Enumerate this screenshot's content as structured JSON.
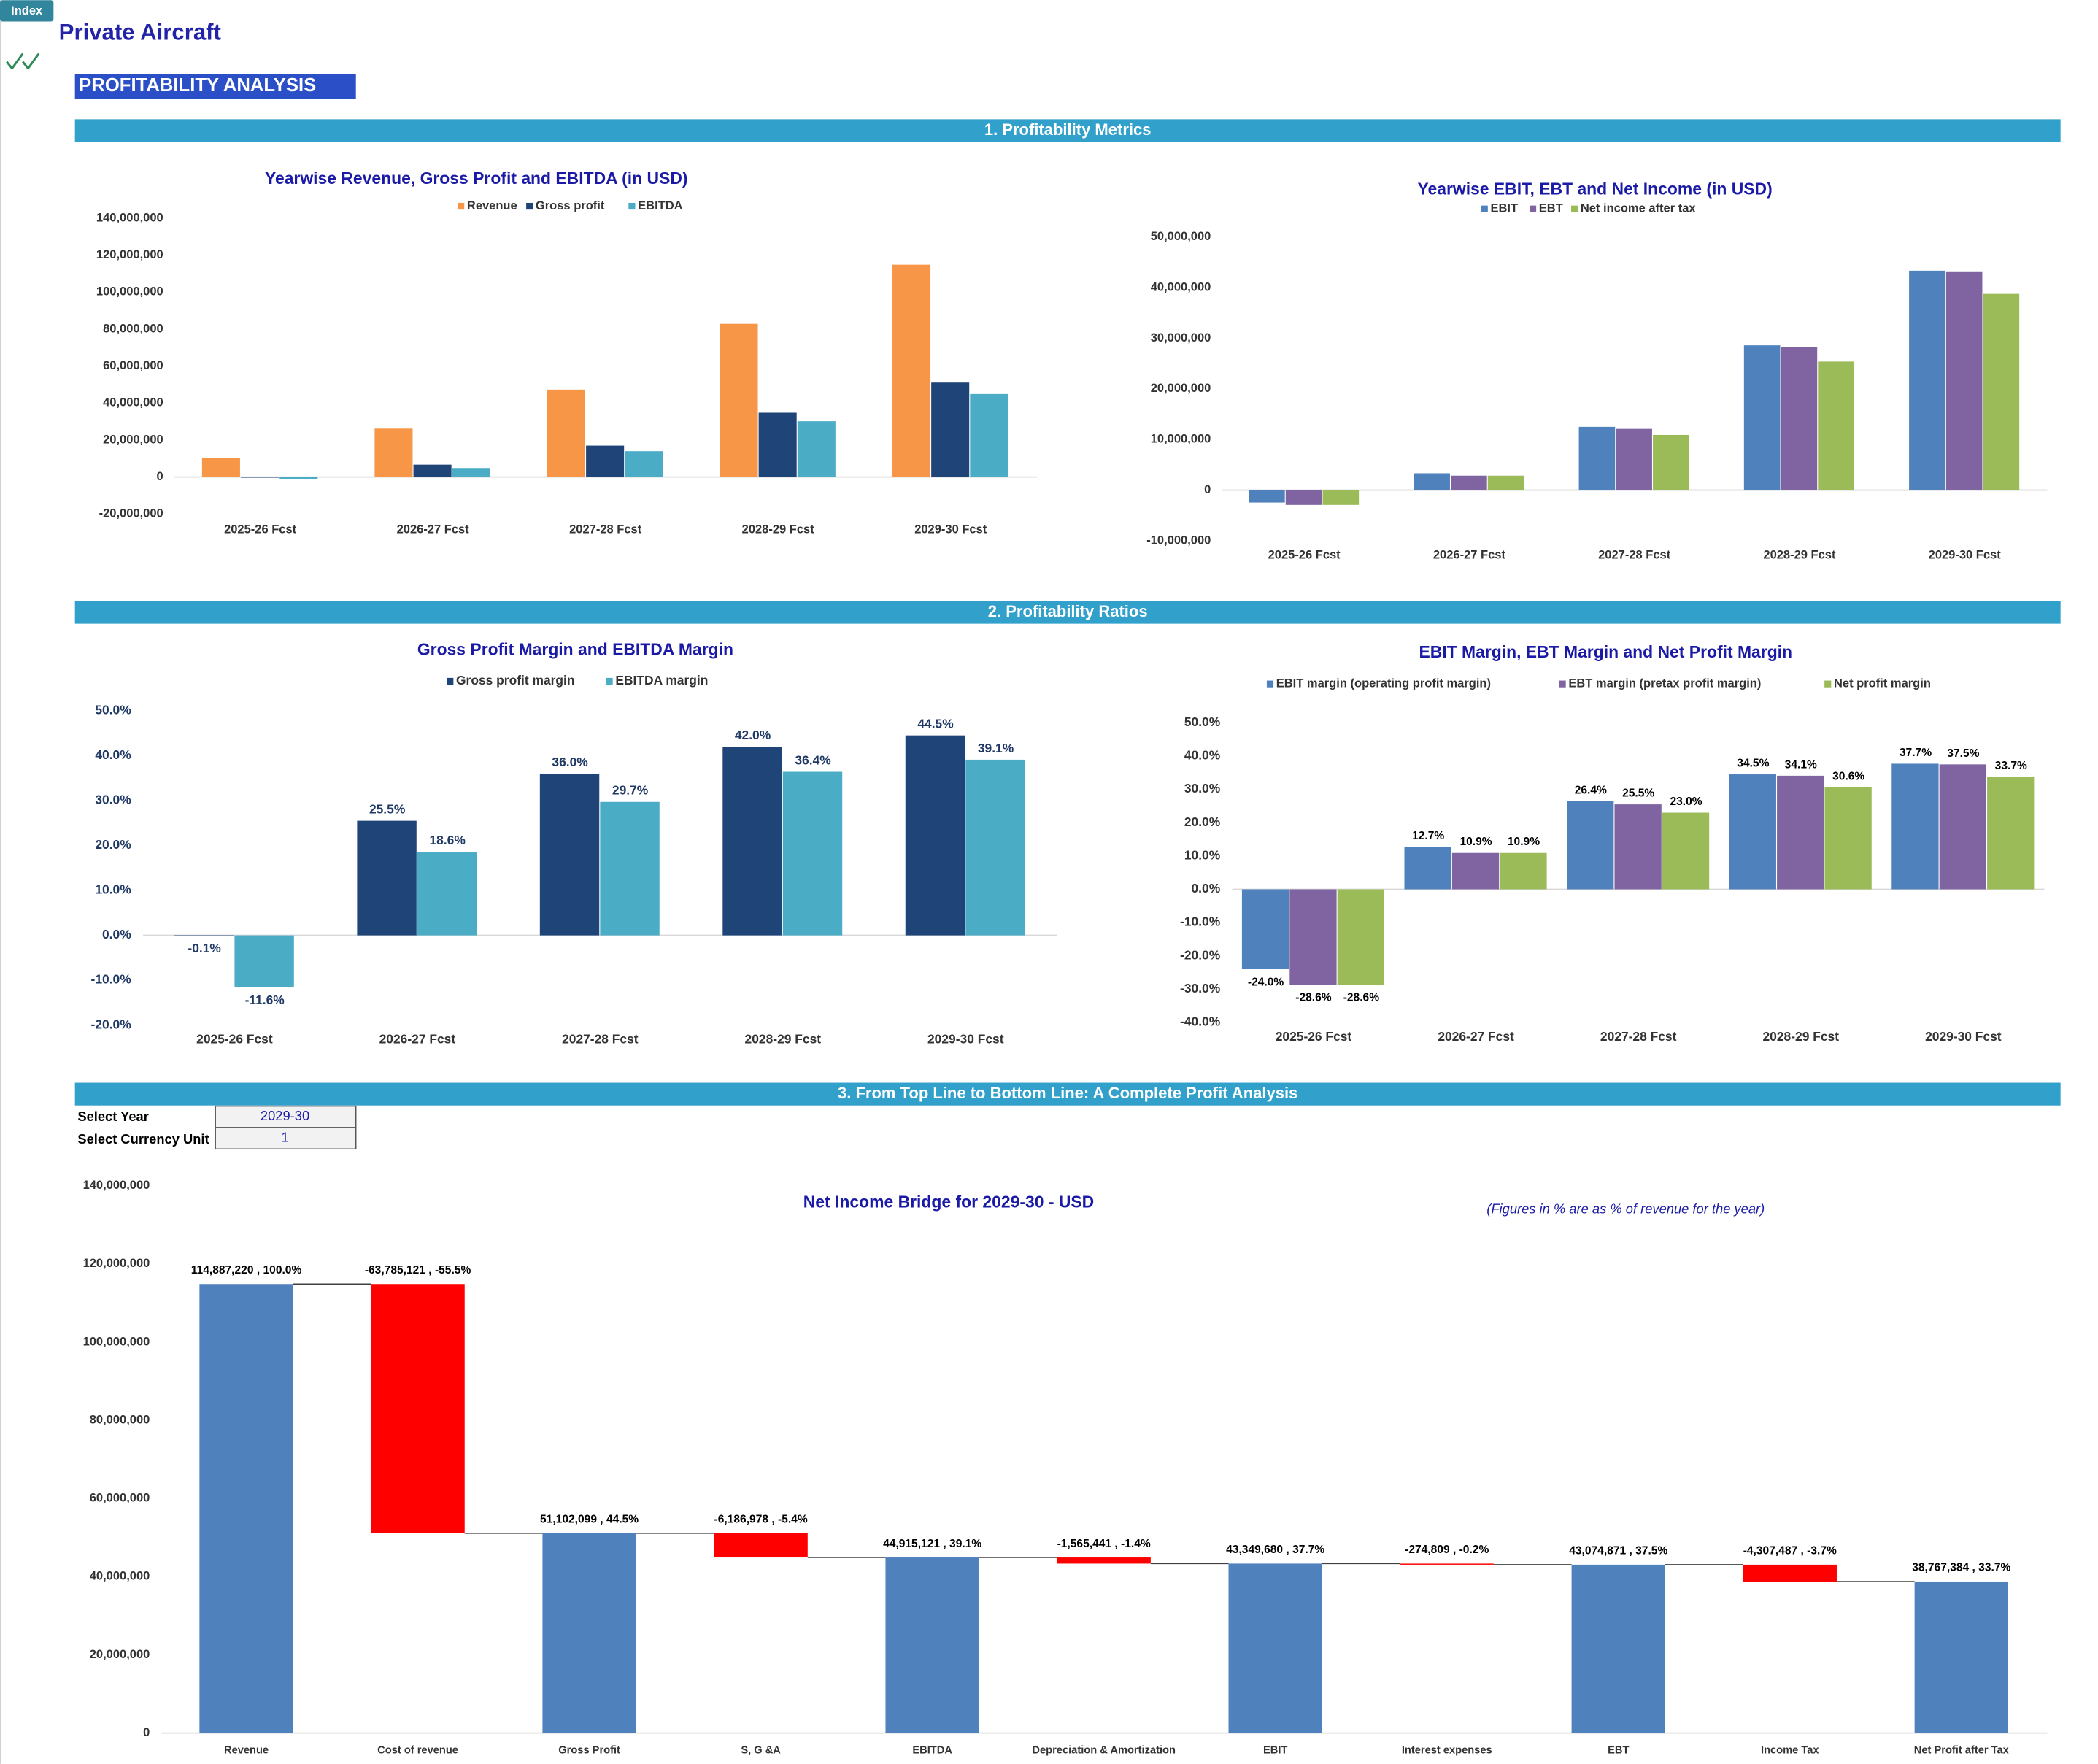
{
  "header": {
    "tab": "Index",
    "title": "Private Aircraft",
    "heading": "PROFITABILITY ANALYSIS"
  },
  "sections": [
    "1. Profitability Metrics",
    "2. Profitability Ratios",
    "3. From Top Line to Bottom Line: A Complete Profit Analysis"
  ],
  "selectors": [
    {
      "label": "Select Year",
      "value": "2029-30"
    },
    {
      "label": "Select Currency Unit",
      "value": 1
    }
  ],
  "chart_data": [
    {
      "type": "bar",
      "title": "Yearwise Revenue, Gross Profit and EBITDA (in USD)",
      "legend": "top",
      "categories": [
        "2025-26 Fcst",
        "2026-27 Fcst",
        "2027-28 Fcst",
        "2028-29 Fcst",
        "2029-30 Fcst"
      ],
      "series": [
        {
          "name": "Revenue",
          "color": "#f79646",
          "values": [
            10200000,
            26200000,
            47300000,
            82900000,
            114887220
          ]
        },
        {
          "name": "Gross profit",
          "color": "#1f4478",
          "values": [
            -10000,
            6700000,
            17000000,
            34800000,
            51102099
          ]
        },
        {
          "name": "EBITDA",
          "color": "#4bacc6",
          "values": [
            -1200000,
            4900000,
            14000000,
            30200000,
            44915121
          ]
        }
      ],
      "ylim": [
        -20000000,
        140000000
      ],
      "yticks": [
        {
          "value": -20000000,
          "label": "-20,000,000"
        },
        0,
        {
          "value": 20000000,
          "label": "20,000,000"
        },
        {
          "value": 40000000,
          "label": "40,000,000"
        },
        {
          "value": 60000000,
          "label": "60,000,000"
        },
        {
          "value": 80000000,
          "label": "80,000,000"
        },
        {
          "value": 100000000,
          "label": "100,000,000"
        },
        {
          "value": 120000000,
          "label": "120,000,000"
        },
        {
          "value": 140000000,
          "label": "140,000,000"
        }
      ],
      "grid": false
    },
    {
      "type": "bar",
      "title": "Yearwise EBIT, EBT and Net Income (in USD)",
      "legend": "top",
      "categories": [
        "2025-26 Fcst",
        "2026-27 Fcst",
        "2027-28 Fcst",
        "2028-29 Fcst",
        "2029-30 Fcst"
      ],
      "series": [
        {
          "name": "EBIT",
          "color": "#4f81bd",
          "values": [
            -2450000,
            3330000,
            12500000,
            28600000,
            43349680
          ]
        },
        {
          "name": "EBT",
          "color": "#8064a2",
          "values": [
            -2920000,
            2860000,
            12100000,
            28300000,
            43074871
          ]
        },
        {
          "name": "Net income after tax",
          "color": "#9bbb59",
          "values": [
            -2920000,
            2860000,
            10900000,
            25400000,
            38767384
          ]
        }
      ],
      "ylim": [
        -10000000,
        50000000
      ],
      "yticks": [
        {
          "value": -10000000,
          "label": "-10,000,000"
        },
        0,
        {
          "value": 10000000,
          "label": "10,000,000"
        },
        {
          "value": 20000000,
          "label": "20,000,000"
        },
        {
          "value": 30000000,
          "label": "30,000,000"
        },
        {
          "value": 40000000,
          "label": "40,000,000"
        },
        {
          "value": 50000000,
          "label": "50,000,000"
        }
      ],
      "grid": false
    },
    {
      "type": "bar",
      "title": "Gross Profit Margin and  EBITDA Margin",
      "legend": "top",
      "categories": [
        "2025-26 Fcst",
        "2026-27 Fcst",
        "2027-28 Fcst",
        "2028-29 Fcst",
        "2029-30 Fcst"
      ],
      "series": [
        {
          "name": "Gross profit margin",
          "color": "#1f4478",
          "values": [
            -0.1,
            25.5,
            36.0,
            42.0,
            44.5
          ],
          "value_labels": [
            "-0.1%",
            "25.5%",
            "36.0%",
            "42.0%",
            "44.5%"
          ]
        },
        {
          "name": "EBITDA margin",
          "color": "#4bacc6",
          "values": [
            -11.6,
            18.6,
            29.7,
            36.4,
            39.1
          ],
          "value_labels": [
            "-11.6%",
            "18.6%",
            "29.7%",
            "36.4%",
            "39.1%"
          ]
        }
      ],
      "ylim": [
        -20,
        50
      ],
      "yticks": [
        {
          "value": -20,
          "label": "-20.0%"
        },
        {
          "value": -10,
          "label": "-10.0%"
        },
        {
          "value": 0,
          "label": "0.0%"
        },
        {
          "value": 10,
          "label": "10.0%"
        },
        {
          "value": 20,
          "label": "20.0%"
        },
        {
          "value": 30,
          "label": "30.0%"
        },
        {
          "value": 40,
          "label": "40.0%"
        },
        {
          "value": 50,
          "label": "50.0%"
        }
      ],
      "grid": false
    },
    {
      "type": "bar",
      "title": "EBIT Margin, EBT Margin and Net Profit Margin",
      "legend": "top",
      "categories": [
        "2025-26 Fcst",
        "2026-27 Fcst",
        "2027-28 Fcst",
        "2028-29 Fcst",
        "2029-30 Fcst"
      ],
      "series": [
        {
          "name": "EBIT margin (operating profit margin)",
          "color": "#4f81bd",
          "values": [
            -24.0,
            12.7,
            26.4,
            34.5,
            37.7
          ],
          "value_labels": [
            "-24.0%",
            "12.7%",
            "26.4%",
            "34.5%",
            "37.7%"
          ]
        },
        {
          "name": "EBT margin (pretax profit margin)",
          "color": "#8064a2",
          "values": [
            -28.6,
            10.9,
            25.5,
            34.1,
            37.5
          ],
          "value_labels": [
            "-28.6%",
            "10.9%",
            "25.5%",
            "34.1%",
            "37.5%"
          ]
        },
        {
          "name": "Net profit margin",
          "color": "#9bbb59",
          "values": [
            -28.6,
            10.9,
            23.0,
            30.6,
            33.7
          ],
          "value_labels": [
            "-28.6%",
            "10.9%",
            "23.0%",
            "30.6%",
            "33.7%"
          ]
        }
      ],
      "ylim": [
        -40,
        50
      ],
      "yticks": [
        {
          "value": -40,
          "label": "-40.0%"
        },
        {
          "value": -30,
          "label": "-30.0%"
        },
        {
          "value": -20,
          "label": "-20.0%"
        },
        {
          "value": -10,
          "label": "-10.0%"
        },
        {
          "value": 0,
          "label": "0.0%"
        },
        {
          "value": 10,
          "label": "10.0%"
        },
        {
          "value": 20,
          "label": "20.0%"
        },
        {
          "value": 30,
          "label": "30.0%"
        },
        {
          "value": 40,
          "label": "40.0%"
        },
        {
          "value": 50,
          "label": "50.0%"
        }
      ],
      "grid": false
    },
    {
      "type": "waterfall",
      "title": "Net Income Bridge for 2029-30 - USD",
      "note": "(Figures in % are as % of revenue for the year)",
      "categories": [
        "Revenue",
        "Cost of revenue",
        "Gross Profit",
        "S, G &A",
        "EBITDA",
        "Depreciation & Amortization",
        "EBIT",
        "Interest expenses",
        "EBT",
        "Income Tax",
        "Net Profit after Tax"
      ],
      "values": [
        114887220,
        -63785121,
        51102099,
        -6186978,
        44915121,
        -1565441,
        43349680,
        -274809,
        43074871,
        -4307487,
        38767384
      ],
      "value_labels": [
        "114,887,220 , 100.0%",
        "-63,785,121 , -55.5%",
        "51,102,099 , 44.5%",
        "-6,186,978 , -5.4%",
        "44,915,121 , 39.1%",
        "-1,565,441 , -1.4%",
        "43,349,680 , 37.7%",
        "-274,809 , -0.2%",
        "43,074,871 , 37.5%",
        "-4,307,487 , -3.7%",
        "38,767,384 , 33.7%"
      ],
      "totals": [
        true,
        false,
        true,
        false,
        true,
        false,
        true,
        false,
        true,
        false,
        true
      ],
      "color": "#4f81bd",
      "negative_color": "#ff0000",
      "ylim": [
        0,
        140000000
      ],
      "yticks": [
        0,
        {
          "value": 20000000,
          "label": "20,000,000"
        },
        {
          "value": 40000000,
          "label": "40,000,000"
        },
        {
          "value": 60000000,
          "label": "60,000,000"
        },
        {
          "value": 80000000,
          "label": "80,000,000"
        },
        {
          "value": 100000000,
          "label": "100,000,000"
        },
        {
          "value": 120000000,
          "label": "120,000,000"
        },
        {
          "value": 140000000,
          "label": "140,000,000"
        }
      ],
      "grid": false
    }
  ]
}
